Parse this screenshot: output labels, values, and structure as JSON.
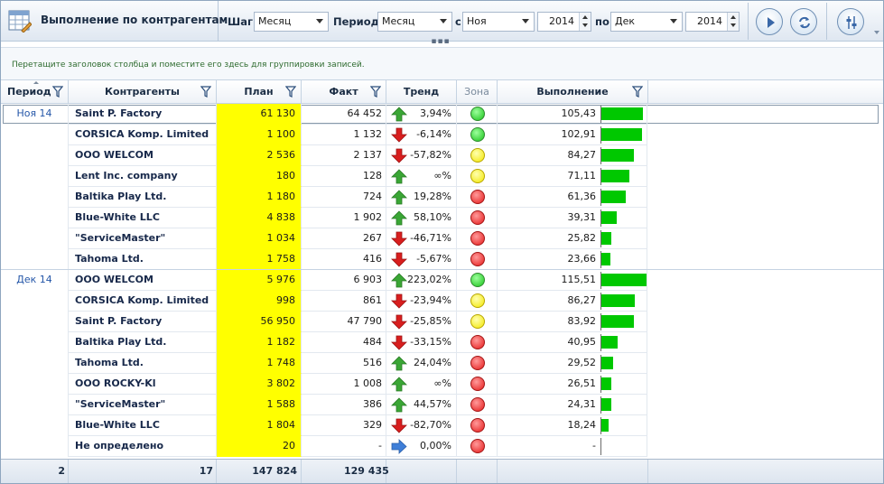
{
  "toolbar": {
    "title": "Выполнение по контрагентам",
    "step_label": "Шаг:",
    "step_value": "Месяц",
    "period_label": "Период:",
    "period_value": "Месяц",
    "from_label": "с",
    "from_month": "Ноя",
    "from_year": "2014",
    "to_label": "по",
    "to_month": "Дек",
    "to_year": "2014",
    "collapse_glyph": "▪▪▪",
    "icons": [
      "table-icon",
      "play-icon",
      "refresh-icon",
      "settings-sliders-icon"
    ]
  },
  "group_panel": {
    "hint": "Перетащите заголовок столбца и поместите его здесь для группировки записей."
  },
  "columns": {
    "period": "Период",
    "name": "Контрагенты",
    "plan": "План",
    "fact": "Факт",
    "trend": "Тренд",
    "zone": "Зона",
    "exec": "Выполнение"
  },
  "rows": [
    {
      "period": "Ноя 14",
      "name": "Saint P. Factory",
      "plan": "61 130",
      "fact": "64 452",
      "trend": "up",
      "trend_pct": "3,94%",
      "zone": "green",
      "exec": "105,43",
      "exec_num": 105.43
    },
    {
      "period": "",
      "name": "CORSICA Komp. Limited",
      "plan": "1 100",
      "fact": "1 132",
      "trend": "down",
      "trend_pct": "-6,14%",
      "zone": "green",
      "exec": "102,91",
      "exec_num": 102.91
    },
    {
      "period": "",
      "name": "OOO WELCOM",
      "plan": "2 536",
      "fact": "2 137",
      "trend": "down",
      "trend_pct": "-57,82%",
      "zone": "yellow",
      "exec": "84,27",
      "exec_num": 84.27
    },
    {
      "period": "",
      "name": "Lent Inc. company",
      "plan": "180",
      "fact": "128",
      "trend": "up",
      "trend_pct": "∞%",
      "zone": "yellow",
      "exec": "71,11",
      "exec_num": 71.11
    },
    {
      "period": "",
      "name": "Baltika Play Ltd.",
      "plan": "1 180",
      "fact": "724",
      "trend": "up",
      "trend_pct": "19,28%",
      "zone": "red",
      "exec": "61,36",
      "exec_num": 61.36
    },
    {
      "period": "",
      "name": "Blue-White LLC",
      "plan": "4 838",
      "fact": "1 902",
      "trend": "up",
      "trend_pct": "58,10%",
      "zone": "red",
      "exec": "39,31",
      "exec_num": 39.31
    },
    {
      "period": "",
      "name": "\"ServiceMaster\"",
      "plan": "1 034",
      "fact": "267",
      "trend": "down",
      "trend_pct": "-46,71%",
      "zone": "red",
      "exec": "25,82",
      "exec_num": 25.82
    },
    {
      "period": "",
      "name": "Tahoma Ltd.",
      "plan": "1 758",
      "fact": "416",
      "trend": "down",
      "trend_pct": "-5,67%",
      "zone": "red",
      "exec": "23,66",
      "exec_num": 23.66
    },
    {
      "period": "Дек 14",
      "name": "OOO WELCOM",
      "plan": "5 976",
      "fact": "6 903",
      "trend": "up",
      "trend_pct": "223,02%",
      "zone": "green",
      "exec": "115,51",
      "exec_num": 115.51
    },
    {
      "period": "",
      "name": "CORSICA Komp. Limited",
      "plan": "998",
      "fact": "861",
      "trend": "down",
      "trend_pct": "-23,94%",
      "zone": "yellow",
      "exec": "86,27",
      "exec_num": 86.27
    },
    {
      "period": "",
      "name": "Saint P. Factory",
      "plan": "56 950",
      "fact": "47 790",
      "trend": "down",
      "trend_pct": "-25,85%",
      "zone": "yellow",
      "exec": "83,92",
      "exec_num": 83.92
    },
    {
      "period": "",
      "name": "Baltika Play Ltd.",
      "plan": "1 182",
      "fact": "484",
      "trend": "down",
      "trend_pct": "-33,15%",
      "zone": "red",
      "exec": "40,95",
      "exec_num": 40.95
    },
    {
      "period": "",
      "name": "Tahoma Ltd.",
      "plan": "1 748",
      "fact": "516",
      "trend": "up",
      "trend_pct": "24,04%",
      "zone": "red",
      "exec": "29,52",
      "exec_num": 29.52
    },
    {
      "period": "",
      "name": "OOO ROCKY-Kl",
      "plan": "3 802",
      "fact": "1 008",
      "trend": "up",
      "trend_pct": "∞%",
      "zone": "red",
      "exec": "26,51",
      "exec_num": 26.51
    },
    {
      "period": "",
      "name": "\"ServiceMaster\"",
      "plan": "1 588",
      "fact": "386",
      "trend": "up",
      "trend_pct": "44,57%",
      "zone": "red",
      "exec": "24,31",
      "exec_num": 24.31
    },
    {
      "period": "",
      "name": "Blue-White LLC",
      "plan": "1 804",
      "fact": "329",
      "trend": "down",
      "trend_pct": "-82,70%",
      "zone": "red",
      "exec": "18,24",
      "exec_num": 18.24
    },
    {
      "period": "",
      "name": "Не определено",
      "plan": "20",
      "fact": "-",
      "trend": "right",
      "trend_pct": "0,00%",
      "zone": "red",
      "exec": "-",
      "exec_num": 0
    }
  ],
  "totals": {
    "period": "2",
    "name": "17",
    "plan": "147 824",
    "fact": "129 435"
  },
  "colors": {
    "plan_highlight": "#ffff00",
    "bar": "#00c800",
    "zone_green": "#19c219",
    "zone_yellow": "#f2e600",
    "zone_red": "#e51a1a",
    "trend_up": "#3aa635",
    "trend_down": "#d81e1e",
    "trend_neutral": "#3f7fd8"
  }
}
